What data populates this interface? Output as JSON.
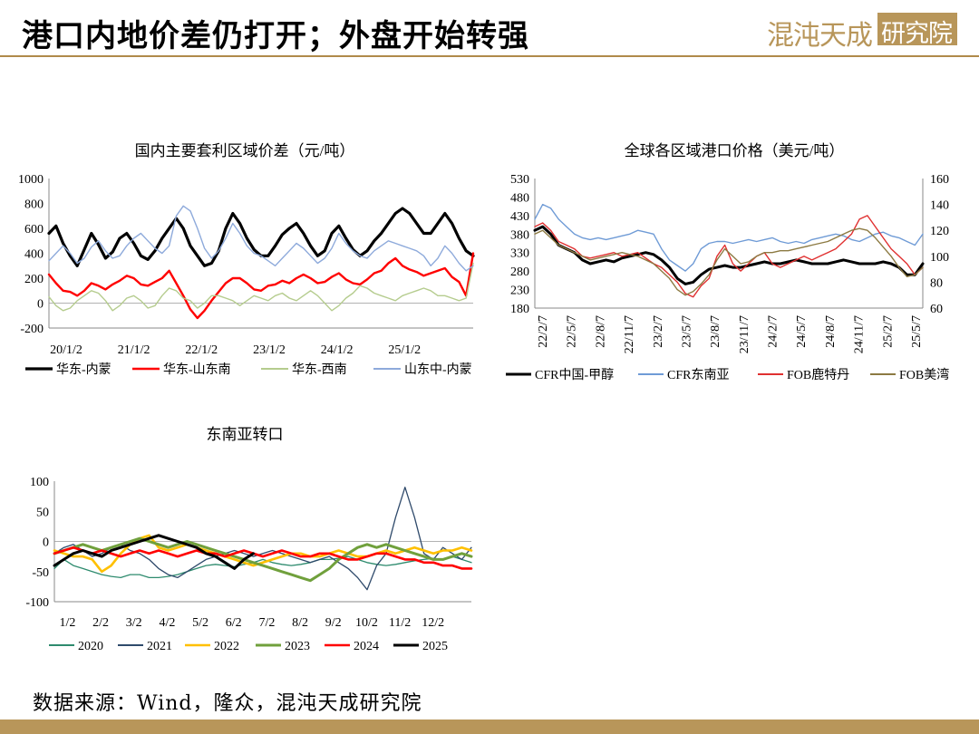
{
  "header": {
    "title": "港口内地价差仍打开；外盘开始转强",
    "logo_text": "混沌天成",
    "logo_box_text": "研究院"
  },
  "footer": {
    "source": "数据来源：Wind，隆众，混沌天成研究院"
  },
  "colors": {
    "accent": "#b8965a"
  },
  "chart_data": [
    {
      "type": "line",
      "title": "国内主要套利区域价差（元/吨）",
      "ylim": [
        -200,
        1000
      ],
      "yticks": [
        -200,
        0,
        200,
        400,
        600,
        800,
        1000
      ],
      "xticks": [
        "20/1/2",
        "21/1/2",
        "22/1/2",
        "23/1/2",
        "24/1/2",
        "25/1/2"
      ],
      "legend_position": "bottom",
      "series": [
        {
          "name": "华东-内蒙",
          "color": "#000000",
          "width": 3.2,
          "values": [
            560,
            620,
            480,
            380,
            300,
            430,
            560,
            470,
            360,
            410,
            520,
            560,
            480,
            380,
            350,
            420,
            520,
            600,
            680,
            600,
            460,
            380,
            300,
            320,
            420,
            600,
            720,
            640,
            520,
            430,
            380,
            380,
            460,
            550,
            600,
            640,
            560,
            460,
            380,
            420,
            560,
            620,
            520,
            430,
            380,
            420,
            500,
            560,
            640,
            720,
            760,
            720,
            640,
            560,
            560,
            640,
            720,
            640,
            520,
            420,
            380
          ]
        },
        {
          "name": "华东-山东南",
          "color": "#ff0000",
          "width": 2.4,
          "values": [
            230,
            160,
            100,
            90,
            60,
            100,
            160,
            140,
            110,
            150,
            180,
            220,
            200,
            150,
            140,
            170,
            200,
            260,
            160,
            60,
            -50,
            -120,
            -60,
            20,
            90,
            160,
            200,
            200,
            160,
            110,
            100,
            140,
            150,
            180,
            160,
            200,
            230,
            200,
            160,
            170,
            210,
            240,
            190,
            160,
            150,
            190,
            240,
            260,
            320,
            360,
            300,
            270,
            250,
            220,
            240,
            260,
            280,
            210,
            170,
            60,
            400
          ]
        },
        {
          "name": "华东-西南",
          "color": "#b5cc8e",
          "width": 1.4,
          "values": [
            50,
            -20,
            -60,
            -40,
            20,
            60,
            100,
            80,
            20,
            -60,
            -20,
            40,
            60,
            20,
            -40,
            -20,
            60,
            120,
            100,
            40,
            20,
            -40,
            0,
            60,
            60,
            40,
            20,
            -20,
            20,
            60,
            40,
            20,
            60,
            80,
            40,
            20,
            60,
            100,
            60,
            0,
            -60,
            -20,
            40,
            80,
            140,
            120,
            80,
            60,
            40,
            20,
            60,
            80,
            100,
            120,
            100,
            60,
            60,
            40,
            20,
            40,
            320
          ]
        },
        {
          "name": "山东中-内蒙",
          "color": "#8eaadb",
          "width": 1.4,
          "values": [
            340,
            400,
            460,
            400,
            320,
            360,
            450,
            500,
            420,
            360,
            380,
            460,
            520,
            560,
            500,
            440,
            400,
            460,
            700,
            780,
            740,
            600,
            440,
            360,
            420,
            520,
            640,
            560,
            460,
            400,
            380,
            340,
            300,
            360,
            420,
            480,
            440,
            380,
            320,
            360,
            440,
            560,
            480,
            420,
            380,
            360,
            420,
            460,
            500,
            480,
            460,
            440,
            420,
            380,
            300,
            360,
            460,
            400,
            320,
            260,
            300
          ]
        }
      ]
    },
    {
      "type": "line",
      "title": "全球各区域港口价格（美元/吨）",
      "ylim": [
        180,
        530
      ],
      "yticks": [
        180,
        230,
        280,
        330,
        380,
        430,
        480,
        530
      ],
      "y2lim": [
        60,
        160
      ],
      "y2ticks": [
        60,
        80,
        100,
        120,
        140,
        160
      ],
      "xticks": [
        "22/2/7",
        "22/5/7",
        "22/8/7",
        "22/11/7",
        "23/2/7",
        "23/5/7",
        "23/8/7",
        "23/11/7",
        "24/2/7",
        "24/5/7",
        "24/8/7",
        "24/11/7",
        "25/2/7",
        "25/5/7"
      ],
      "legend_position": "bottom",
      "series": [
        {
          "name": "CFR中国-甲醇",
          "color": "#000000",
          "width": 3.0,
          "values": [
            390,
            400,
            380,
            350,
            340,
            330,
            310,
            300,
            305,
            310,
            305,
            315,
            320,
            325,
            330,
            325,
            310,
            290,
            260,
            245,
            250,
            270,
            285,
            290,
            295,
            290,
            290,
            295,
            300,
            305,
            300,
            300,
            305,
            310,
            305,
            300,
            300,
            300,
            305,
            310,
            305,
            300,
            300,
            300,
            305,
            300,
            290,
            270,
            270,
            300
          ]
        },
        {
          "name": "CFR东南亚",
          "color": "#6f9bd6",
          "width": 1.4,
          "values": [
            420,
            460,
            450,
            420,
            400,
            380,
            370,
            365,
            370,
            365,
            370,
            375,
            380,
            390,
            385,
            380,
            340,
            310,
            295,
            280,
            300,
            340,
            355,
            360,
            360,
            355,
            360,
            365,
            360,
            365,
            370,
            360,
            355,
            360,
            355,
            365,
            370,
            375,
            380,
            375,
            365,
            360,
            370,
            380,
            385,
            375,
            370,
            360,
            350,
            380
          ]
        },
        {
          "name": "FOB鹿特丹",
          "color": "#e03030",
          "width": 1.4,
          "values": [
            400,
            410,
            390,
            360,
            350,
            340,
            320,
            315,
            320,
            325,
            330,
            320,
            325,
            330,
            315,
            300,
            290,
            270,
            250,
            220,
            210,
            240,
            260,
            320,
            350,
            300,
            280,
            300,
            320,
            330,
            300,
            290,
            300,
            310,
            320,
            310,
            320,
            330,
            340,
            360,
            380,
            420,
            430,
            400,
            370,
            340,
            320,
            300,
            270,
            290
          ]
        },
        {
          "name": "FOB美湾",
          "color": "#8c7a42",
          "width": 1.4,
          "values": [
            380,
            390,
            370,
            350,
            340,
            330,
            320,
            310,
            315,
            320,
            325,
            330,
            325,
            320,
            310,
            300,
            280,
            260,
            230,
            215,
            225,
            245,
            270,
            310,
            340,
            320,
            300,
            305,
            320,
            330,
            330,
            335,
            335,
            340,
            345,
            350,
            355,
            360,
            370,
            380,
            390,
            395,
            390,
            370,
            345,
            320,
            290,
            265,
            270,
            290
          ]
        }
      ]
    },
    {
      "type": "line",
      "title": "东南亚转口",
      "ylim": [
        -100,
        100
      ],
      "yticks": [
        -100,
        -50,
        0,
        50,
        100
      ],
      "xticks": [
        "1/2",
        "2/2",
        "3/2",
        "4/2",
        "5/2",
        "6/2",
        "7/2",
        "8/2",
        "9/2",
        "10/2",
        "11/2",
        "12/2"
      ],
      "legend_position": "bottom",
      "series": [
        {
          "name": "2020",
          "color": "#2e8b6e",
          "width": 1.3,
          "values": [
            -45,
            -30,
            -40,
            -45,
            -50,
            -55,
            -58,
            -60,
            -55,
            -55,
            -60,
            -60,
            -58,
            -55,
            -50,
            -45,
            -40,
            -38,
            -40,
            -42,
            -38,
            -35,
            -30,
            -35,
            -38,
            -40,
            -38,
            -35,
            -30,
            -30,
            -28,
            -25,
            -30,
            -35,
            -38,
            -40,
            -38,
            -35,
            -32,
            -30,
            -28,
            -30,
            -25,
            -30,
            -35
          ]
        },
        {
          "name": "2021",
          "color": "#2f4a6b",
          "width": 1.3,
          "values": [
            -20,
            -10,
            -5,
            -15,
            -25,
            -20,
            -10,
            -5,
            -15,
            -20,
            -30,
            -45,
            -55,
            -60,
            -50,
            -40,
            -30,
            -25,
            -20,
            -15,
            -20,
            -25,
            -20,
            -15,
            -20,
            -25,
            -30,
            -35,
            -30,
            -25,
            -35,
            -45,
            -60,
            -80,
            -40,
            -20,
            40,
            90,
            40,
            -20,
            -30,
            -10,
            -20,
            -30,
            -10
          ]
        },
        {
          "name": "2022",
          "color": "#ffc000",
          "width": 2.6,
          "values": [
            -15,
            -20,
            -25,
            -25,
            -30,
            -50,
            -40,
            -20,
            -5,
            5,
            10,
            -10,
            -15,
            -10,
            -5,
            -10,
            -15,
            -20,
            -25,
            -30,
            -35,
            -40,
            -35,
            -30,
            -25,
            -20,
            -20,
            -25,
            -25,
            -20,
            -15,
            -20,
            -25,
            -25,
            -20,
            -15,
            -20,
            -15,
            -10,
            -15,
            -20,
            -15,
            -15,
            -10,
            -15
          ]
        },
        {
          "name": "2023",
          "color": "#70a03c",
          "width": 3.0,
          "values": [
            -20,
            -15,
            -10,
            -5,
            -10,
            -15,
            -10,
            -5,
            0,
            5,
            0,
            -5,
            -10,
            -5,
            0,
            -5,
            -10,
            -15,
            -20,
            -25,
            -30,
            -35,
            -40,
            -45,
            -50,
            -55,
            -60,
            -65,
            -55,
            -45,
            -30,
            -20,
            -10,
            -5,
            -10,
            -5,
            -10,
            -15,
            -20,
            -25,
            -30,
            -30,
            -25,
            -20,
            -25
          ]
        },
        {
          "name": "2024",
          "color": "#ff0000",
          "width": 2.6,
          "values": [
            -20,
            -15,
            -10,
            -15,
            -20,
            -15,
            -20,
            -25,
            -20,
            -15,
            -20,
            -15,
            -20,
            -25,
            -20,
            -15,
            -20,
            -20,
            -25,
            -20,
            -15,
            -20,
            -25,
            -20,
            -15,
            -20,
            -25,
            -25,
            -20,
            -20,
            -25,
            -30,
            -30,
            -25,
            -20,
            -20,
            -25,
            -30,
            -30,
            -35,
            -35,
            -40,
            -40,
            -45,
            -45
          ]
        },
        {
          "name": "2025",
          "color": "#000000",
          "width": 3.0,
          "values": [
            -40,
            -30,
            -20,
            -15,
            -20,
            -25,
            -15,
            -10,
            -5,
            0,
            5,
            10,
            5,
            0,
            -5,
            -10,
            -20,
            -25,
            -35,
            -45,
            -30,
            -20
          ]
        }
      ]
    }
  ]
}
